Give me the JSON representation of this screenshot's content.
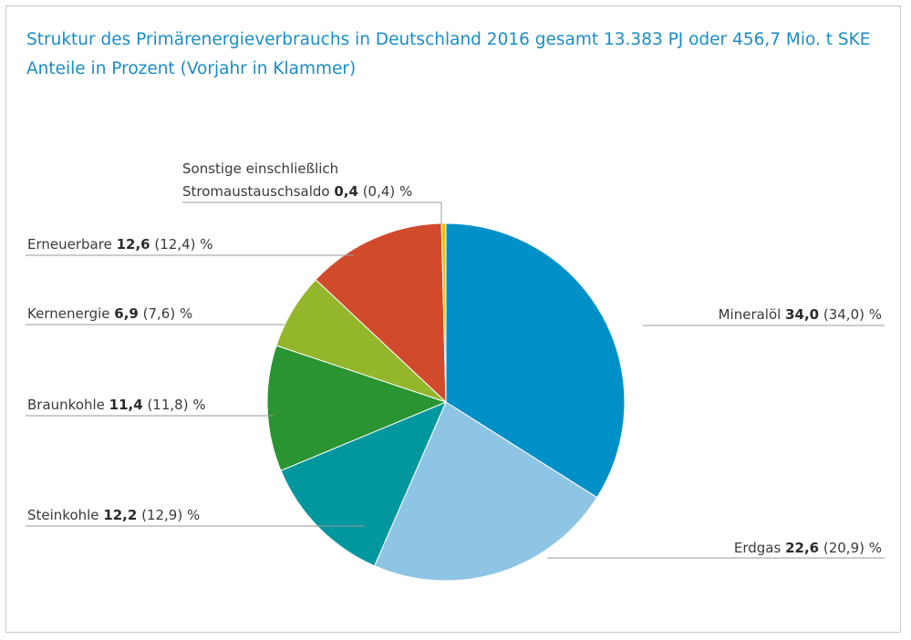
{
  "title_line1": "Struktur des Primärenergieverbrauchs in Deutschland 2016 gesamt 13.383 PJ oder 456,7 Mio. t SKE",
  "title_line2": "Anteile in Prozent (Vorjahr in Klammer)",
  "chart_data": {
    "type": "pie",
    "title": "Struktur des Primärenergieverbrauchs in Deutschland 2016 gesamt 13.383 PJ oder 456,7 Mio. t SKE",
    "subtitle": "Anteile in Prozent (Vorjahr in Klammer)",
    "unit": "%",
    "slices": [
      {
        "label": "Mineralöl",
        "value": 34.0,
        "value_text": "34,0",
        "previous_text": "(34,0)",
        "color": "#0090c8"
      },
      {
        "label": "Erdgas",
        "value": 22.6,
        "value_text": "22,6",
        "previous_text": "(20,9)",
        "color": "#8ec5e4"
      },
      {
        "label": "Steinkohle",
        "value": 12.2,
        "value_text": "12,2",
        "previous_text": "(12,9)",
        "color": "#00979f"
      },
      {
        "label": "Braunkohle",
        "value": 11.4,
        "value_text": "11,4",
        "previous_text": "(11,8)",
        "color": "#2a9432"
      },
      {
        "label": "Kernenergie",
        "value": 6.9,
        "value_text": "6,9",
        "previous_text": "(7,6)",
        "color": "#94b62b"
      },
      {
        "label": "Erneuerbare",
        "value": 12.6,
        "value_text": "12,6",
        "previous_text": "(12,4)",
        "color": "#d14a2c"
      },
      {
        "label": "Sonstige einschließlich Stromaustauschsaldo",
        "label_line1": "Sonstige einschließlich",
        "label_line2": "Stromaustauschsaldo",
        "value": 0.4,
        "value_text": "0,4",
        "previous_text": "(0,4)",
        "color": "#f2c200"
      }
    ]
  }
}
